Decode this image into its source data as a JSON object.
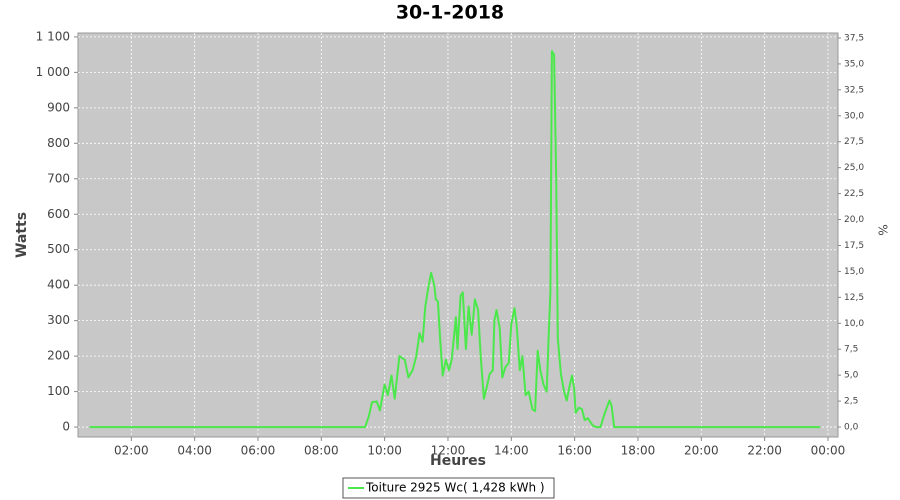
{
  "chart_data": {
    "type": "line",
    "title": "30-1-2018",
    "x_label": "Heures",
    "y_label": "Watts",
    "y2_label": "%",
    "xlim": [
      19,
      1459
    ],
    "xticks": [
      {
        "value": 120,
        "label": "02:00"
      },
      {
        "value": 240,
        "label": "04:00"
      },
      {
        "value": 360,
        "label": "06:00"
      },
      {
        "value": 480,
        "label": "08:00"
      },
      {
        "value": 600,
        "label": "10:00"
      },
      {
        "value": 720,
        "label": "12:00"
      },
      {
        "value": 840,
        "label": "14:00"
      },
      {
        "value": 960,
        "label": "16:00"
      },
      {
        "value": 1080,
        "label": "18:00"
      },
      {
        "value": 1200,
        "label": "20:00"
      },
      {
        "value": 1320,
        "label": "22:00"
      },
      {
        "value": 1440,
        "label": "00:00"
      }
    ],
    "ylim": [
      -28,
      1111
    ],
    "yticks": [
      0,
      100,
      200,
      300,
      400,
      500,
      600,
      700,
      800,
      900,
      {
        "value": 1000,
        "label": "1 000"
      },
      {
        "value": 1100,
        "label": "1 100"
      }
    ],
    "y2lim": [
      -0.96,
      37.98
    ],
    "y2ticks": [
      {
        "value": 0,
        "label": "0,0"
      },
      {
        "value": 2.5,
        "label": "2,5"
      },
      {
        "value": 5,
        "label": "5,0"
      },
      {
        "value": 7.5,
        "label": "7,5"
      },
      {
        "value": 10,
        "label": "10,0"
      },
      {
        "value": 12.5,
        "label": "12,5"
      },
      {
        "value": 15,
        "label": "15,0"
      },
      {
        "value": 17.5,
        "label": "17,5"
      },
      {
        "value": 20,
        "label": "20,0"
      },
      {
        "value": 22.5,
        "label": "22,5"
      },
      {
        "value": 25,
        "label": "25,0"
      },
      {
        "value": 27.5,
        "label": "27,5"
      },
      {
        "value": 30,
        "label": "30,0"
      },
      {
        "value": 32.5,
        "label": "32,5"
      },
      {
        "value": 35,
        "label": "35,0"
      },
      {
        "value": 37.5,
        "label": "37,5"
      }
    ],
    "grid": true,
    "x": [
      41,
      563,
      570,
      576,
      585,
      591,
      600,
      606,
      613,
      619,
      628,
      638,
      645,
      653,
      660,
      666,
      672,
      677,
      683,
      688,
      694,
      697,
      701,
      705,
      710,
      716,
      722,
      727,
      735,
      738,
      744,
      748,
      754,
      759,
      765,
      771,
      777,
      782,
      788,
      793,
      799,
      805,
      808,
      812,
      818,
      823,
      829,
      835,
      840,
      846,
      850,
      856,
      861,
      867,
      873,
      880,
      885,
      890,
      895,
      901,
      907,
      910,
      914,
      917,
      921,
      925,
      928,
      934,
      940,
      945,
      951,
      955,
      959,
      962,
      968,
      974,
      979,
      985,
      994,
      1001,
      1009,
      1015,
      1021,
      1026,
      1030,
      1035,
      1425
    ],
    "series": [
      {
        "name": "Toiture 2925 Wc( 1,428 kWh )",
        "color": "#4be84b",
        "values": [
          0,
          0,
          30,
          70,
          72,
          47,
          120,
          90,
          145,
          80,
          200,
          190,
          140,
          160,
          200,
          265,
          240,
          340,
          395,
          435,
          400,
          360,
          355,
          250,
          145,
          190,
          160,
          190,
          310,
          220,
          370,
          380,
          220,
          340,
          260,
          360,
          330,
          200,
          80,
          110,
          150,
          160,
          300,
          330,
          280,
          140,
          170,
          180,
          290,
          335,
          290,
          160,
          200,
          90,
          100,
          50,
          45,
          215,
          160,
          120,
          100,
          230,
          380,
          1060,
          1050,
          700,
          250,
          150,
          100,
          75,
          120,
          145,
          110,
          40,
          55,
          50,
          20,
          25,
          5,
          0,
          0,
          30,
          55,
          75,
          60,
          0,
          0
        ]
      }
    ]
  }
}
